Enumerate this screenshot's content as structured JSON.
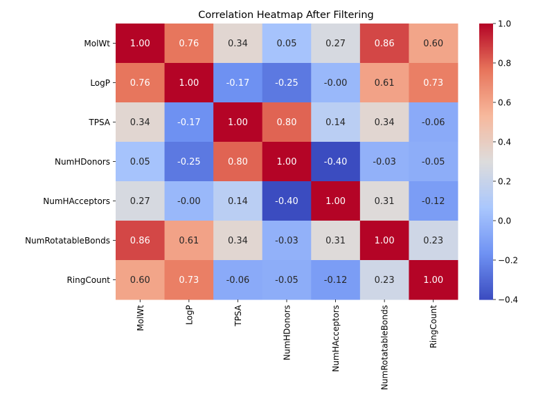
{
  "chart_data": {
    "type": "heatmap",
    "title": "Correlation Heatmap After Filtering",
    "variables": [
      "MolWt",
      "LogP",
      "TPSA",
      "NumHDonors",
      "NumHAcceptors",
      "NumRotatableBonds",
      "RingCount"
    ],
    "matrix": [
      [
        1.0,
        0.76,
        0.34,
        0.05,
        0.27,
        0.86,
        0.6
      ],
      [
        0.76,
        1.0,
        -0.17,
        -0.25,
        -0.0,
        0.61,
        0.73
      ],
      [
        0.34,
        -0.17,
        1.0,
        0.8,
        0.14,
        0.34,
        -0.06
      ],
      [
        0.05,
        -0.25,
        0.8,
        1.0,
        -0.4,
        -0.03,
        -0.05
      ],
      [
        0.27,
        -0.0,
        0.14,
        -0.4,
        1.0,
        0.31,
        -0.12
      ],
      [
        0.86,
        0.61,
        0.34,
        -0.03,
        0.31,
        1.0,
        0.23
      ],
      [
        0.6,
        0.73,
        -0.06,
        -0.05,
        -0.12,
        0.23,
        1.0
      ]
    ],
    "cell_labels": [
      [
        "1.00",
        "0.76",
        "0.34",
        "0.05",
        "0.27",
        "0.86",
        "0.60"
      ],
      [
        "0.76",
        "1.00",
        "-0.17",
        "-0.25",
        "-0.00",
        "0.61",
        "0.73"
      ],
      [
        "0.34",
        "-0.17",
        "1.00",
        "0.80",
        "0.14",
        "0.34",
        "-0.06"
      ],
      [
        "0.05",
        "-0.25",
        "0.80",
        "1.00",
        "-0.40",
        "-0.03",
        "-0.05"
      ],
      [
        "0.27",
        "-0.00",
        "0.14",
        "-0.40",
        "1.00",
        "0.31",
        "-0.12"
      ],
      [
        "0.86",
        "0.61",
        "0.34",
        "-0.03",
        "0.31",
        "1.00",
        "0.23"
      ],
      [
        "0.60",
        "0.73",
        "-0.06",
        "-0.05",
        "-0.12",
        "0.23",
        "1.00"
      ]
    ],
    "colormap": "coolwarm",
    "colormap_stops": [
      "#3b4cc0",
      "#6f92f3",
      "#aac7fd",
      "#dddcdc",
      "#f7b89c",
      "#e7745b",
      "#b40426"
    ],
    "vmin": -0.4,
    "vmax": 1.0,
    "colorbar_ticks": [
      {
        "value": 1.0,
        "label": "1.0"
      },
      {
        "value": 0.8,
        "label": "0.8"
      },
      {
        "value": 0.6,
        "label": "0.6"
      },
      {
        "value": 0.4,
        "label": "0.4"
      },
      {
        "value": 0.2,
        "label": "0.2"
      },
      {
        "value": 0.0,
        "label": "0.0"
      },
      {
        "value": -0.2,
        "label": "−0.2"
      },
      {
        "value": -0.4,
        "label": "−0.4"
      }
    ],
    "xlabel": "",
    "ylabel": "",
    "grid": false,
    "legend": "colorbar-right",
    "text_color_light": "#ffffff",
    "text_color_dark": "#262626"
  }
}
